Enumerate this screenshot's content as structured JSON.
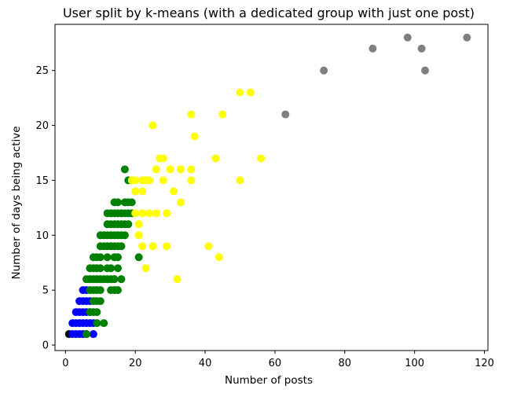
{
  "chart_data": {
    "type": "scatter",
    "title": "User split by k-means (with a dedicated group with just one post)",
    "xlabel": "Number of posts",
    "ylabel": "Number of days being active",
    "xlim": [
      -3,
      121
    ],
    "ylim": [
      -0.5,
      29.2
    ],
    "xticks": [
      0,
      20,
      40,
      60,
      80,
      100,
      120
    ],
    "yticks": [
      0,
      5,
      10,
      15,
      20,
      25
    ],
    "grid": false,
    "legend": "none",
    "series": [
      {
        "color": "#000000",
        "points": [
          [
            1,
            1
          ]
        ]
      },
      {
        "color": "#0000ff",
        "points": [
          [
            2,
            1
          ],
          [
            3,
            1
          ],
          [
            4,
            1
          ],
          [
            5,
            1
          ],
          [
            6,
            1
          ],
          [
            8,
            1
          ],
          [
            2,
            2
          ],
          [
            3,
            2
          ],
          [
            4,
            2
          ],
          [
            5,
            2
          ],
          [
            6,
            2
          ],
          [
            7,
            2
          ],
          [
            8,
            2
          ],
          [
            3,
            3
          ],
          [
            4,
            3
          ],
          [
            5,
            3
          ],
          [
            6,
            3
          ],
          [
            7,
            3
          ],
          [
            4,
            4
          ],
          [
            5,
            4
          ],
          [
            6,
            4
          ],
          [
            7,
            4
          ],
          [
            5,
            5
          ],
          [
            6,
            5
          ]
        ]
      },
      {
        "color": "#008000",
        "points": [
          [
            6,
            1
          ],
          [
            9,
            2
          ],
          [
            11,
            2
          ],
          [
            7,
            3
          ],
          [
            8,
            3
          ],
          [
            9,
            3
          ],
          [
            8,
            4
          ],
          [
            9,
            4
          ],
          [
            10,
            4
          ],
          [
            7,
            5
          ],
          [
            8,
            5
          ],
          [
            9,
            5
          ],
          [
            10,
            5
          ],
          [
            13,
            5
          ],
          [
            14,
            5
          ],
          [
            15,
            5
          ],
          [
            6,
            6
          ],
          [
            7,
            6
          ],
          [
            8,
            6
          ],
          [
            9,
            6
          ],
          [
            10,
            6
          ],
          [
            11,
            6
          ],
          [
            12,
            6
          ],
          [
            13,
            6
          ],
          [
            14,
            6
          ],
          [
            16,
            6
          ],
          [
            7,
            7
          ],
          [
            8,
            7
          ],
          [
            9,
            7
          ],
          [
            10,
            7
          ],
          [
            12,
            7
          ],
          [
            13,
            7
          ],
          [
            15,
            7
          ],
          [
            8,
            8
          ],
          [
            9,
            8
          ],
          [
            10,
            8
          ],
          [
            12,
            8
          ],
          [
            14,
            8
          ],
          [
            15,
            8
          ],
          [
            21,
            8
          ],
          [
            10,
            9
          ],
          [
            11,
            9
          ],
          [
            12,
            9
          ],
          [
            13,
            9
          ],
          [
            14,
            9
          ],
          [
            15,
            9
          ],
          [
            16,
            9
          ],
          [
            10,
            10
          ],
          [
            11,
            10
          ],
          [
            12,
            10
          ],
          [
            13,
            10
          ],
          [
            14,
            10
          ],
          [
            15,
            10
          ],
          [
            16,
            10
          ],
          [
            17,
            10
          ],
          [
            12,
            11
          ],
          [
            13,
            11
          ],
          [
            14,
            11
          ],
          [
            15,
            11
          ],
          [
            16,
            11
          ],
          [
            17,
            11
          ],
          [
            18,
            11
          ],
          [
            12,
            12
          ],
          [
            13,
            12
          ],
          [
            14,
            12
          ],
          [
            15,
            12
          ],
          [
            16,
            12
          ],
          [
            17,
            12
          ],
          [
            18,
            12
          ],
          [
            19,
            12
          ],
          [
            14,
            13
          ],
          [
            15,
            13
          ],
          [
            17,
            13
          ],
          [
            18,
            13
          ],
          [
            19,
            13
          ],
          [
            18,
            15
          ],
          [
            17,
            16
          ]
        ]
      },
      {
        "color": "#ffff00",
        "points": [
          [
            19,
            15
          ],
          [
            20,
            15
          ],
          [
            22,
            15
          ],
          [
            23,
            15
          ],
          [
            24,
            15
          ],
          [
            20,
            14
          ],
          [
            22,
            14
          ],
          [
            20,
            12
          ],
          [
            22,
            12
          ],
          [
            24,
            12
          ],
          [
            26,
            12
          ],
          [
            29,
            12
          ],
          [
            21,
            11
          ],
          [
            21,
            10
          ],
          [
            22,
            9
          ],
          [
            25,
            9
          ],
          [
            29,
            9
          ],
          [
            23,
            7
          ],
          [
            32,
            6
          ],
          [
            33,
            13
          ],
          [
            31,
            14
          ],
          [
            28,
            15
          ],
          [
            26,
            16
          ],
          [
            30,
            16
          ],
          [
            33,
            16
          ],
          [
            36,
            16
          ],
          [
            36,
            15
          ],
          [
            27,
            17
          ],
          [
            28,
            17
          ],
          [
            37,
            19
          ],
          [
            25,
            20
          ],
          [
            36,
            21
          ],
          [
            45,
            21
          ],
          [
            43,
            17
          ],
          [
            41,
            9
          ],
          [
            44,
            8
          ],
          [
            50,
            15
          ],
          [
            56,
            17
          ],
          [
            50,
            23
          ],
          [
            53,
            23
          ]
        ]
      },
      {
        "color": "#808080",
        "points": [
          [
            63,
            21
          ],
          [
            74,
            25
          ],
          [
            88,
            27
          ],
          [
            98,
            28
          ],
          [
            102,
            27
          ],
          [
            103,
            25
          ],
          [
            115,
            28
          ]
        ]
      }
    ]
  }
}
